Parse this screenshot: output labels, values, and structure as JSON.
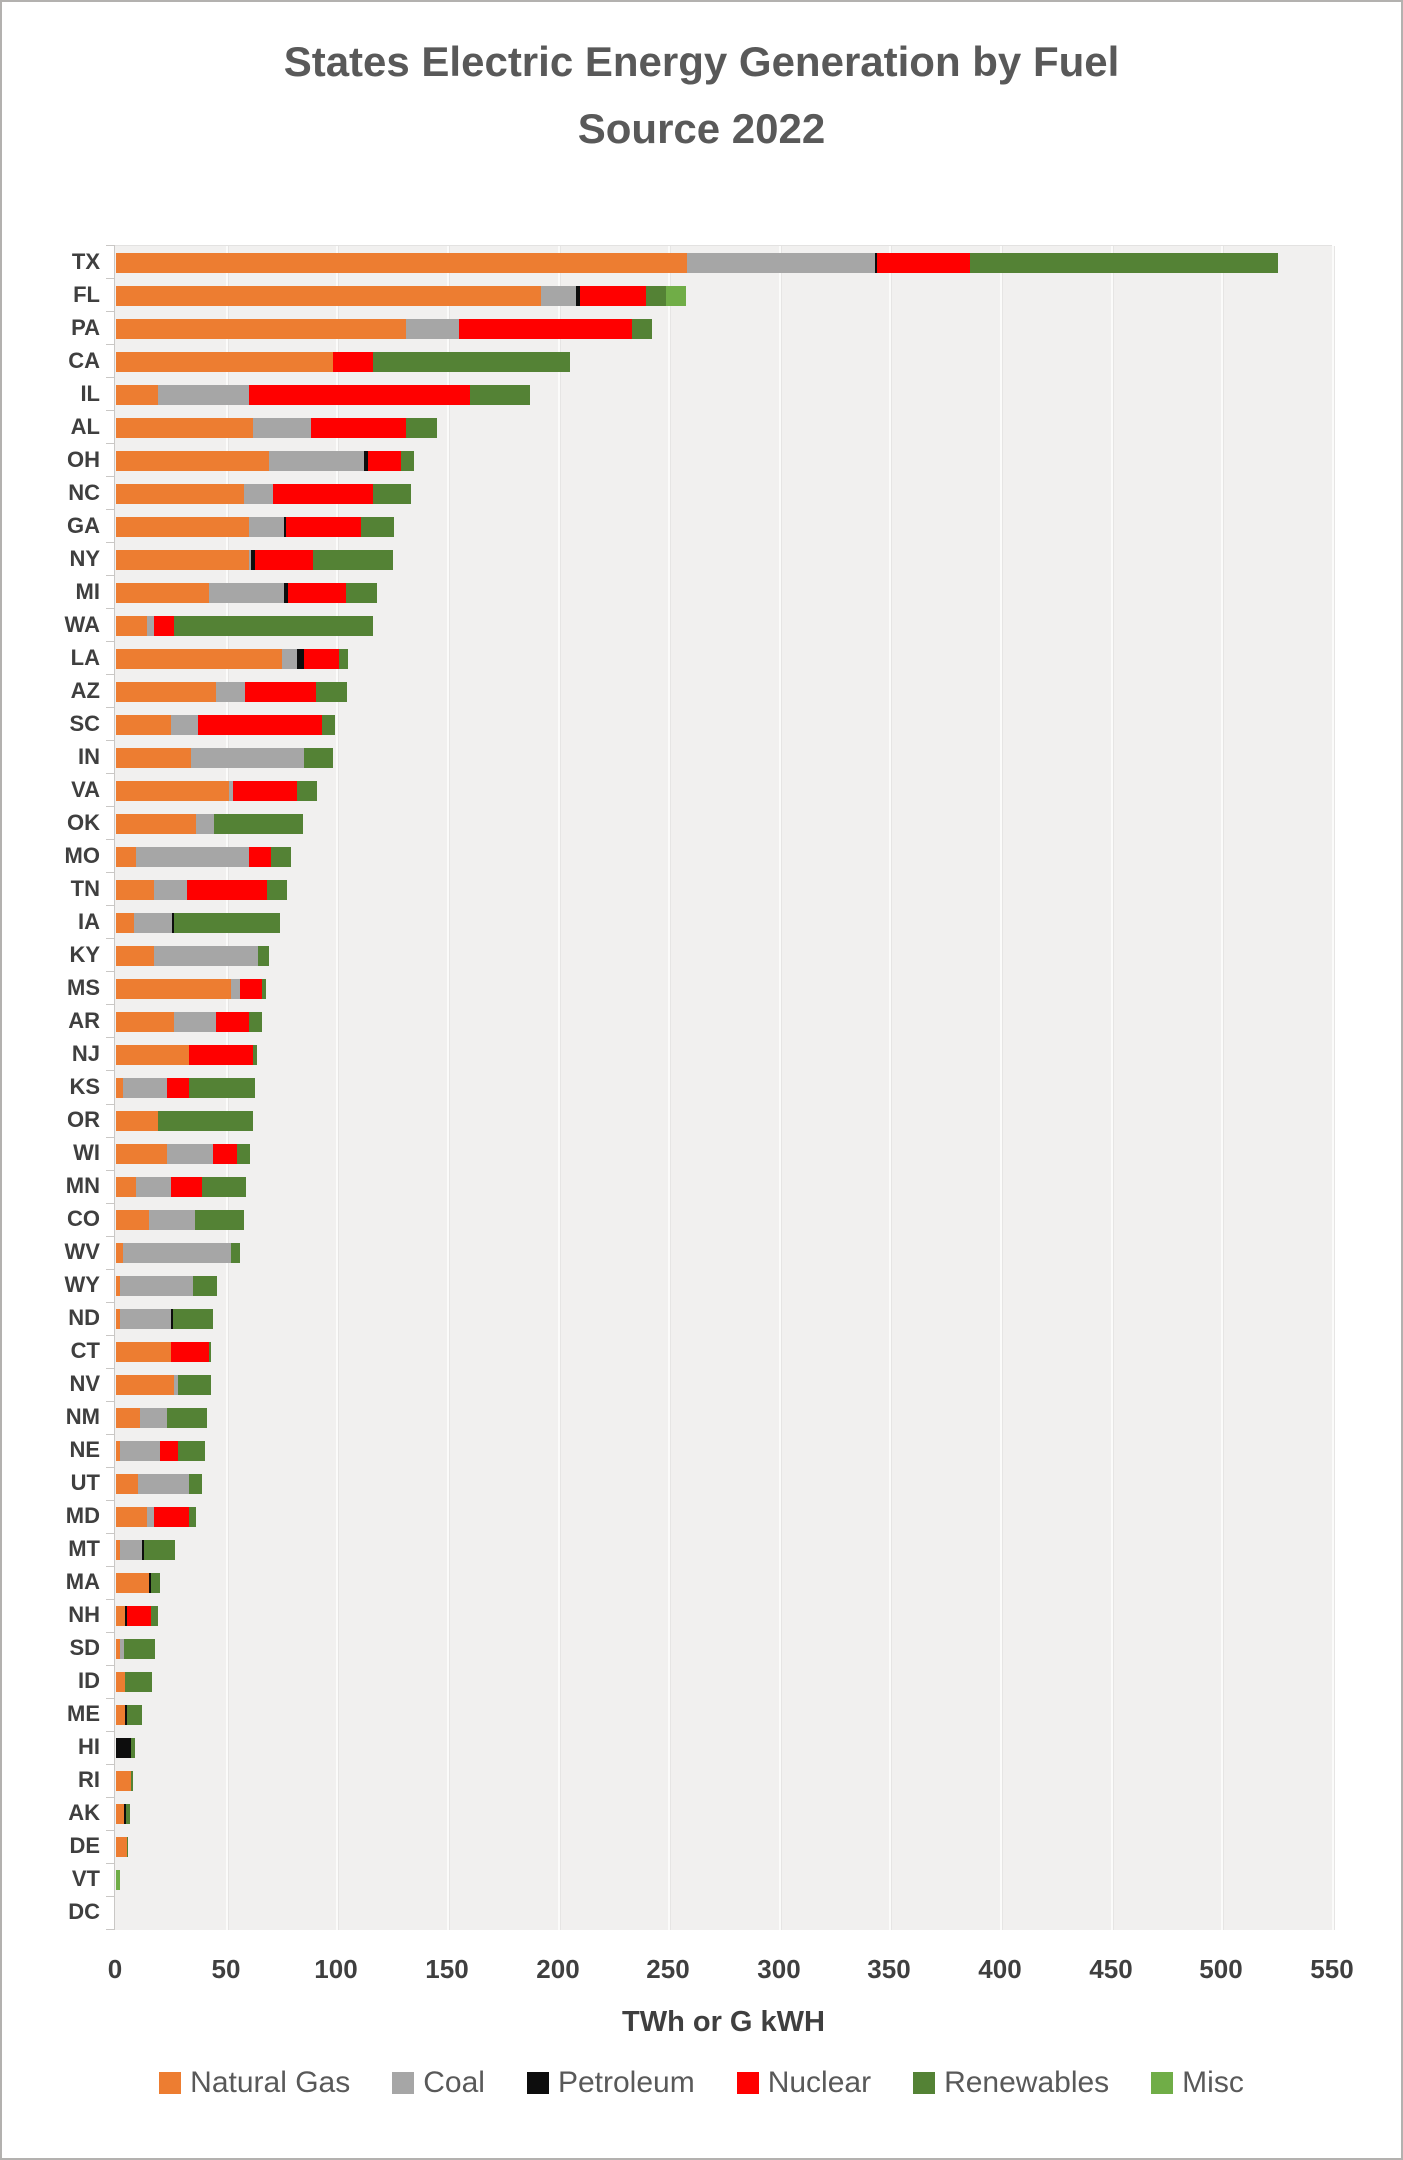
{
  "title": "States Electric Energy  Generation by Fuel\nSource 2022",
  "x_axis_label": "TWh or G kWH",
  "chart_data": {
    "type": "bar",
    "orientation": "horizontal",
    "stacked": true,
    "unit": "TWh",
    "title": "States Electric Energy  Generation by Fuel Source 2022",
    "xlabel": "TWh or G kWH",
    "xlim": [
      0,
      550
    ],
    "x_ticks": [
      0,
      50,
      100,
      150,
      200,
      250,
      300,
      350,
      400,
      450,
      500,
      550
    ],
    "grid": true,
    "legend_position": "bottom",
    "series_names": [
      "Natural Gas",
      "Coal",
      "Petroleum",
      "Nuclear",
      "Renewables",
      "Misc"
    ],
    "series_colors": [
      "#ED7D31",
      "#A6A6A6",
      "#0D0D0D",
      "#FF0000",
      "#548235",
      "#70AD47"
    ],
    "rows": [
      {
        "state": "TX",
        "values": [
          258,
          85,
          1,
          42,
          139,
          0
        ]
      },
      {
        "state": "FL",
        "values": [
          192,
          16,
          2,
          30,
          9,
          9
        ]
      },
      {
        "state": "PA",
        "values": [
          131,
          24,
          0,
          78,
          9,
          0
        ]
      },
      {
        "state": "CA",
        "values": [
          98,
          0,
          0,
          18,
          89,
          0
        ]
      },
      {
        "state": "IL",
        "values": [
          19,
          41,
          0,
          100,
          27,
          0
        ]
      },
      {
        "state": "AL",
        "values": [
          62,
          26,
          0,
          43,
          14,
          0
        ]
      },
      {
        "state": "OH",
        "values": [
          69,
          43,
          2,
          15,
          6,
          0
        ]
      },
      {
        "state": "NC",
        "values": [
          58,
          13,
          0,
          45,
          17,
          0
        ]
      },
      {
        "state": "GA",
        "values": [
          60,
          16,
          1,
          34,
          15,
          0
        ]
      },
      {
        "state": "NY",
        "values": [
          60,
          1,
          2,
          26,
          36,
          0
        ]
      },
      {
        "state": "MI",
        "values": [
          42,
          34,
          2,
          26,
          14,
          0
        ]
      },
      {
        "state": "WA",
        "values": [
          14,
          3,
          0,
          9,
          90,
          0
        ]
      },
      {
        "state": "LA",
        "values": [
          75,
          7,
          3,
          16,
          4,
          0
        ]
      },
      {
        "state": "AZ",
        "values": [
          45,
          13,
          0,
          32,
          14,
          0
        ]
      },
      {
        "state": "SC",
        "values": [
          25,
          12,
          0,
          56,
          6,
          0
        ]
      },
      {
        "state": "IN",
        "values": [
          34,
          51,
          0,
          0,
          13,
          0
        ]
      },
      {
        "state": "VA",
        "values": [
          51,
          2,
          0,
          29,
          9,
          0
        ]
      },
      {
        "state": "OK",
        "values": [
          36,
          8,
          0,
          0,
          40,
          0
        ]
      },
      {
        "state": "MO",
        "values": [
          9,
          51,
          0,
          10,
          9,
          0
        ]
      },
      {
        "state": "TN",
        "values": [
          17,
          15,
          0,
          36,
          9,
          0
        ]
      },
      {
        "state": "IA",
        "values": [
          8,
          17,
          1,
          0,
          48,
          0
        ]
      },
      {
        "state": "KY",
        "values": [
          17,
          47,
          0,
          0,
          5,
          0
        ]
      },
      {
        "state": "MS",
        "values": [
          52,
          4,
          0,
          10,
          2,
          0
        ]
      },
      {
        "state": "AR",
        "values": [
          26,
          19,
          0,
          15,
          6,
          0
        ]
      },
      {
        "state": "NJ",
        "values": [
          33,
          0,
          0,
          29,
          2,
          0
        ]
      },
      {
        "state": "KS",
        "values": [
          3,
          20,
          0,
          10,
          30,
          0
        ]
      },
      {
        "state": "OR",
        "values": [
          19,
          0,
          0,
          0,
          43,
          0
        ]
      },
      {
        "state": "WI",
        "values": [
          23,
          21,
          0,
          11,
          6,
          0
        ]
      },
      {
        "state": "MN",
        "values": [
          9,
          16,
          0,
          14,
          20,
          0
        ]
      },
      {
        "state": "CO",
        "values": [
          15,
          21,
          0,
          0,
          22,
          0
        ]
      },
      {
        "state": "WV",
        "values": [
          3,
          49,
          0,
          0,
          4,
          0
        ]
      },
      {
        "state": "WY",
        "values": [
          2,
          33,
          0,
          0,
          11,
          0
        ]
      },
      {
        "state": "ND",
        "values": [
          2,
          23,
          1,
          0,
          18,
          0
        ]
      },
      {
        "state": "CT",
        "values": [
          25,
          0,
          0,
          17,
          1,
          0
        ]
      },
      {
        "state": "NV",
        "values": [
          26,
          2,
          0,
          0,
          15,
          0
        ]
      },
      {
        "state": "NM",
        "values": [
          11,
          12,
          0,
          0,
          18,
          0
        ]
      },
      {
        "state": "NE",
        "values": [
          2,
          18,
          0,
          8,
          12,
          0
        ]
      },
      {
        "state": "UT",
        "values": [
          10,
          23,
          0,
          0,
          6,
          0
        ]
      },
      {
        "state": "MD",
        "values": [
          14,
          3,
          0,
          16,
          3,
          0
        ]
      },
      {
        "state": "MT",
        "values": [
          2,
          10,
          1,
          0,
          14,
          0
        ]
      },
      {
        "state": "MA",
        "values": [
          15,
          0,
          1,
          0,
          4,
          0
        ]
      },
      {
        "state": "NH",
        "values": [
          4,
          0,
          1,
          11,
          3,
          0
        ]
      },
      {
        "state": "SD",
        "values": [
          2,
          2,
          0,
          0,
          14,
          0
        ]
      },
      {
        "state": "ID",
        "values": [
          4,
          0,
          0,
          0,
          12,
          0
        ]
      },
      {
        "state": "ME",
        "values": [
          4,
          0,
          1,
          0,
          7,
          0
        ]
      },
      {
        "state": "HI",
        "values": [
          0,
          0,
          7,
          0,
          2,
          0
        ]
      },
      {
        "state": "RI",
        "values": [
          7,
          0,
          0,
          0,
          1,
          0
        ]
      },
      {
        "state": "AK",
        "values": [
          3.5,
          0,
          1,
          0,
          2,
          0
        ]
      },
      {
        "state": "DE",
        "values": [
          5,
          0,
          0,
          0,
          0.5,
          0
        ]
      },
      {
        "state": "VT",
        "values": [
          0,
          0,
          0,
          0,
          0,
          2
        ]
      },
      {
        "state": "DC",
        "values": [
          0,
          0,
          0,
          0,
          0,
          0
        ]
      }
    ]
  }
}
